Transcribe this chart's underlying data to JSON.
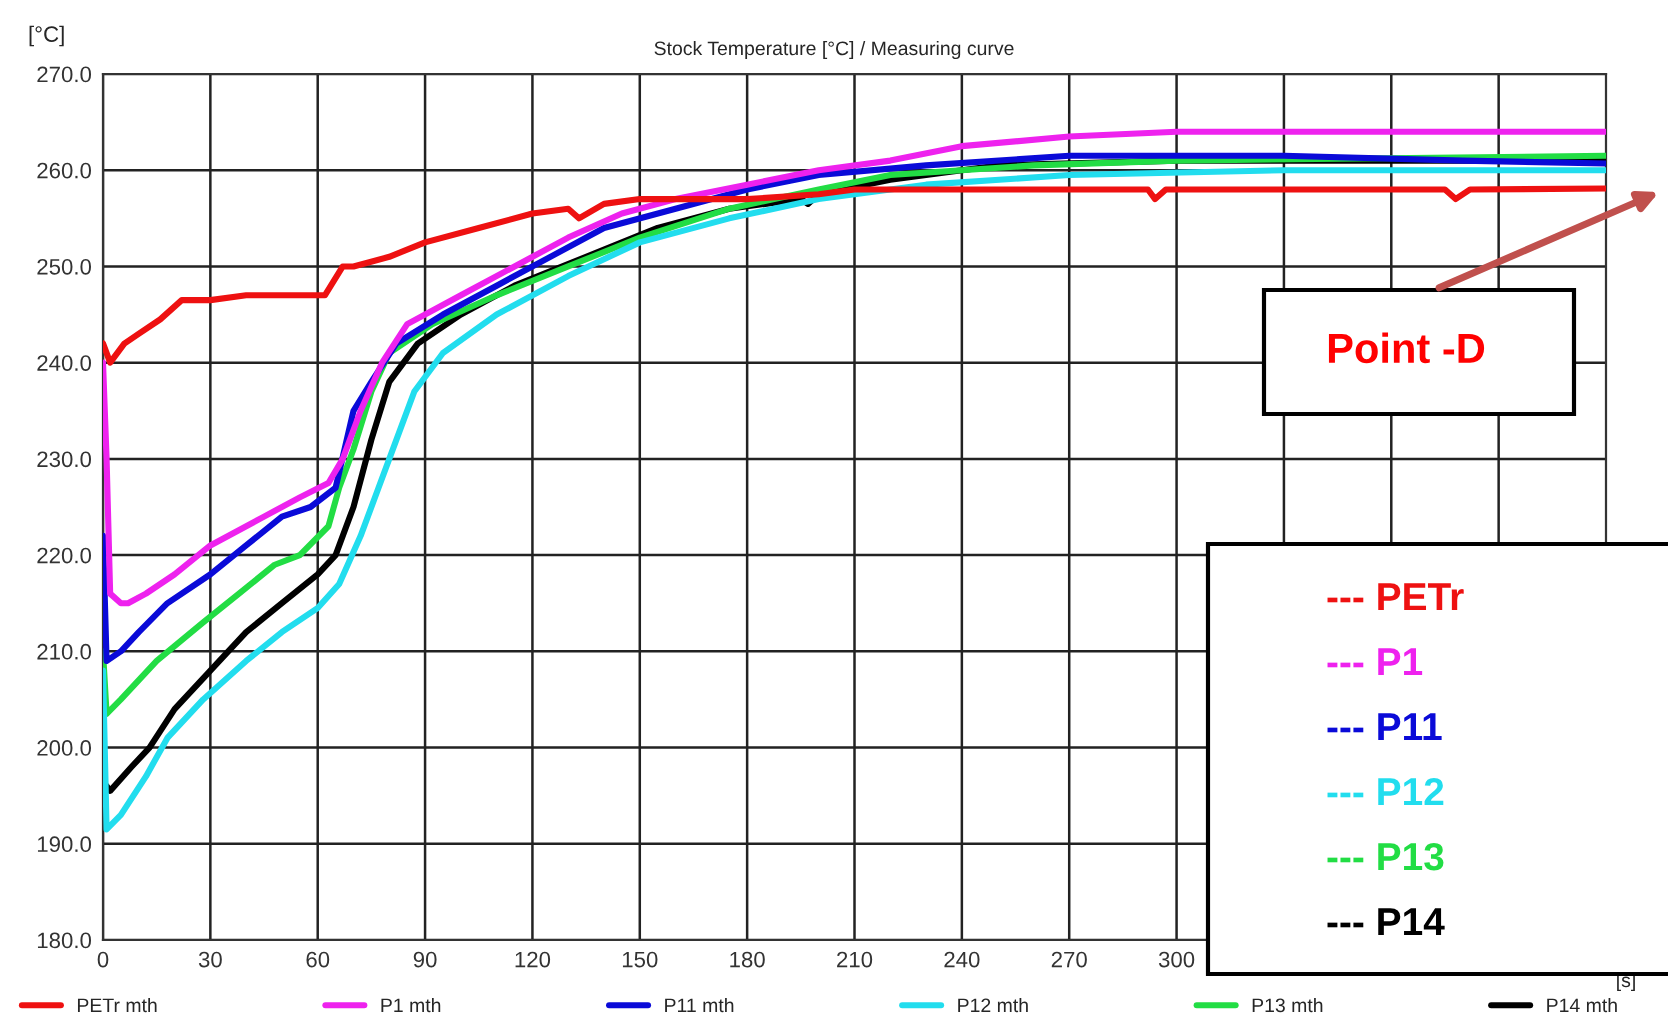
{
  "chart_data": {
    "type": "line",
    "title": "Stock Temperature [°C] / Measuring curve",
    "xlabel": "[s]",
    "ylabel": "[°C]",
    "xlim": [
      0,
      420
    ],
    "ylim": [
      180,
      270
    ],
    "xticks": [
      0,
      30,
      60,
      90,
      120,
      150,
      180,
      210,
      240,
      270,
      300,
      {
        "value": 330,
        "label": null
      },
      {
        "value": 360,
        "label": null
      },
      {
        "value": 390,
        "label": null
      }
    ],
    "yticks": [
      {
        "value": 180,
        "label": "180.0"
      },
      {
        "value": 190,
        "label": "190.0"
      },
      {
        "value": 200,
        "label": "200.0"
      },
      {
        "value": 210,
        "label": "210.0"
      },
      {
        "value": 220,
        "label": "220.0"
      },
      {
        "value": 230,
        "label": "230.0"
      },
      {
        "value": 240,
        "label": "240.0"
      },
      {
        "value": 250,
        "label": "250.0"
      },
      {
        "value": 260,
        "label": "260.0"
      },
      {
        "value": 270,
        "label": "270.0"
      }
    ],
    "grid": true,
    "legend": "bottom",
    "marker": "none",
    "line_style": "solid",
    "annotations": [
      "Point -D",
      "--- PETr",
      "--- P1",
      "--- P11",
      "--- P12",
      "--- P13",
      "--- P14"
    ],
    "series": [
      {
        "name": "PETr mth",
        "color": "#ee1111",
        "x": [
          0,
          2,
          6,
          10,
          16,
          22,
          25,
          30,
          40,
          55,
          62,
          67,
          70,
          80,
          90,
          105,
          120,
          130,
          133,
          140,
          150,
          180,
          200,
          210,
          260,
          292,
          294,
          297,
          300,
          375,
          378,
          382,
          420
        ],
        "values": [
          242,
          240,
          242,
          243,
          244.5,
          246.5,
          246.5,
          246.5,
          247,
          247,
          247,
          250,
          250,
          251,
          252.5,
          254,
          255.5,
          256,
          255,
          256.5,
          257,
          257,
          257.5,
          258,
          258,
          258,
          257,
          258,
          258,
          258,
          257,
          258,
          258.1
        ]
      },
      {
        "name": "P1 mth",
        "color": "#ee22ee",
        "x": [
          0,
          1,
          2,
          5,
          7,
          12,
          20,
          30,
          45,
          55,
          63,
          67,
          72,
          78,
          85,
          100,
          115,
          130,
          145,
          160,
          180,
          200,
          220,
          240,
          270,
          300,
          360,
          420
        ],
        "values": [
          240,
          230,
          216,
          215,
          215,
          216,
          218,
          221,
          224,
          226,
          227.5,
          230,
          235,
          240,
          244,
          247,
          250,
          253,
          255.5,
          257,
          258.5,
          260,
          261,
          262.5,
          263.5,
          264,
          264,
          264
        ]
      },
      {
        "name": "P11 mth",
        "color": "#0a0ad8",
        "x": [
          0,
          1,
          5,
          10,
          18,
          30,
          40,
          50,
          58,
          65,
          70,
          75,
          82,
          95,
          110,
          125,
          140,
          160,
          180,
          200,
          230,
          270,
          330,
          380,
          420
        ],
        "values": [
          222,
          209,
          210,
          212,
          215,
          218,
          221,
          224,
          225,
          227,
          235,
          238,
          242,
          245,
          248,
          251,
          254,
          256,
          258,
          259.5,
          260.5,
          261.5,
          261.5,
          261,
          260.7
        ]
      },
      {
        "name": "P12 mth",
        "color": "#22ddee",
        "x": [
          0,
          1,
          5,
          12,
          18,
          28,
          40,
          50,
          60,
          66,
          72,
          77,
          82,
          87,
          95,
          110,
          130,
          150,
          175,
          200,
          230,
          270,
          330,
          420
        ],
        "values": [
          208,
          191.5,
          193,
          197,
          201,
          205,
          209,
          212,
          214.5,
          217,
          222,
          227,
          232,
          237,
          241,
          245,
          249,
          252.5,
          255,
          257,
          258.5,
          259.5,
          260,
          260
        ]
      },
      {
        "name": "P13 mth",
        "color": "#22dd44",
        "x": [
          0,
          1,
          5,
          15,
          28,
          38,
          48,
          55,
          63,
          66,
          70,
          75,
          80,
          92,
          110,
          130,
          150,
          175,
          200,
          220,
          260,
          300,
          420
        ],
        "values": [
          210,
          203.5,
          205,
          209,
          213,
          216,
          219,
          220,
          223,
          227,
          231,
          237,
          241,
          244,
          247,
          250,
          253,
          256,
          258,
          259.5,
          260.5,
          261,
          261.5
        ]
      },
      {
        "name": "P14 mth",
        "color": "#000000",
        "x": [
          1,
          2,
          8,
          13,
          20,
          30,
          40,
          50,
          60,
          65,
          70,
          75,
          80,
          88,
          100,
          115,
          135,
          155,
          175,
          195,
          197,
          200,
          220,
          250,
          300,
          420
        ],
        "values": [
          196,
          195.5,
          198,
          200,
          204,
          208,
          212,
          215,
          218,
          220,
          225,
          232,
          238,
          242,
          245,
          248,
          251,
          254,
          256,
          257,
          256.5,
          257.5,
          259,
          260.5,
          261,
          261
        ]
      }
    ]
  }
}
